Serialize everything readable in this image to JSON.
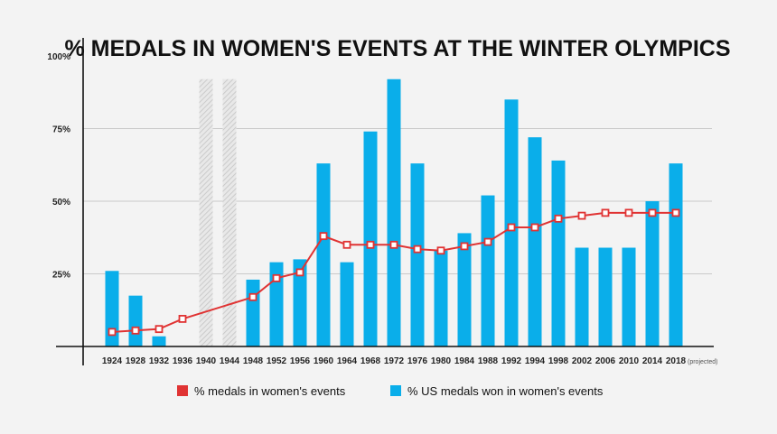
{
  "chart_data": {
    "type": "bar",
    "title": "% MEDALS IN WOMEN'S EVENTS AT THE WINTER OLYMPICS",
    "categories": [
      "1924",
      "1928",
      "1932",
      "1936",
      "1940",
      "1944",
      "1948",
      "1952",
      "1956",
      "1960",
      "1964",
      "1968",
      "1972",
      "1976",
      "1980",
      "1984",
      "1988",
      "1992",
      "1994",
      "1998",
      "2002",
      "2006",
      "2010",
      "2014",
      "2018"
    ],
    "cancelled_games": [
      "1940",
      "1944"
    ],
    "y_ticks": [
      "100%",
      "75%",
      "50%",
      "25%"
    ],
    "y_tick_values": [
      100,
      75,
      50,
      25
    ],
    "ylim": [
      0,
      100
    ],
    "projected_note": "(projected)",
    "series": [
      {
        "name": "% US medals won in women's events",
        "type": "bar",
        "color": "#0aaeea",
        "values": [
          26,
          17.5,
          3.5,
          null,
          null,
          null,
          23,
          29,
          30,
          63,
          29,
          74,
          92,
          63,
          33,
          39,
          52,
          85,
          72,
          64,
          34,
          34,
          34,
          50,
          63
        ]
      },
      {
        "name": "% medals in women's events",
        "type": "line",
        "color": "#e03333",
        "values": [
          5,
          5.5,
          6,
          9.5,
          null,
          null,
          17,
          23.5,
          25.5,
          38,
          35,
          35,
          35,
          33.5,
          33,
          34.5,
          36,
          41,
          41,
          44,
          45,
          46,
          46,
          46,
          46
        ]
      }
    ]
  },
  "legend": [
    {
      "label": "% medals in women's events",
      "color": "#e03333"
    },
    {
      "label": "% US medals won in women's events",
      "color": "#0aaeea"
    }
  ]
}
